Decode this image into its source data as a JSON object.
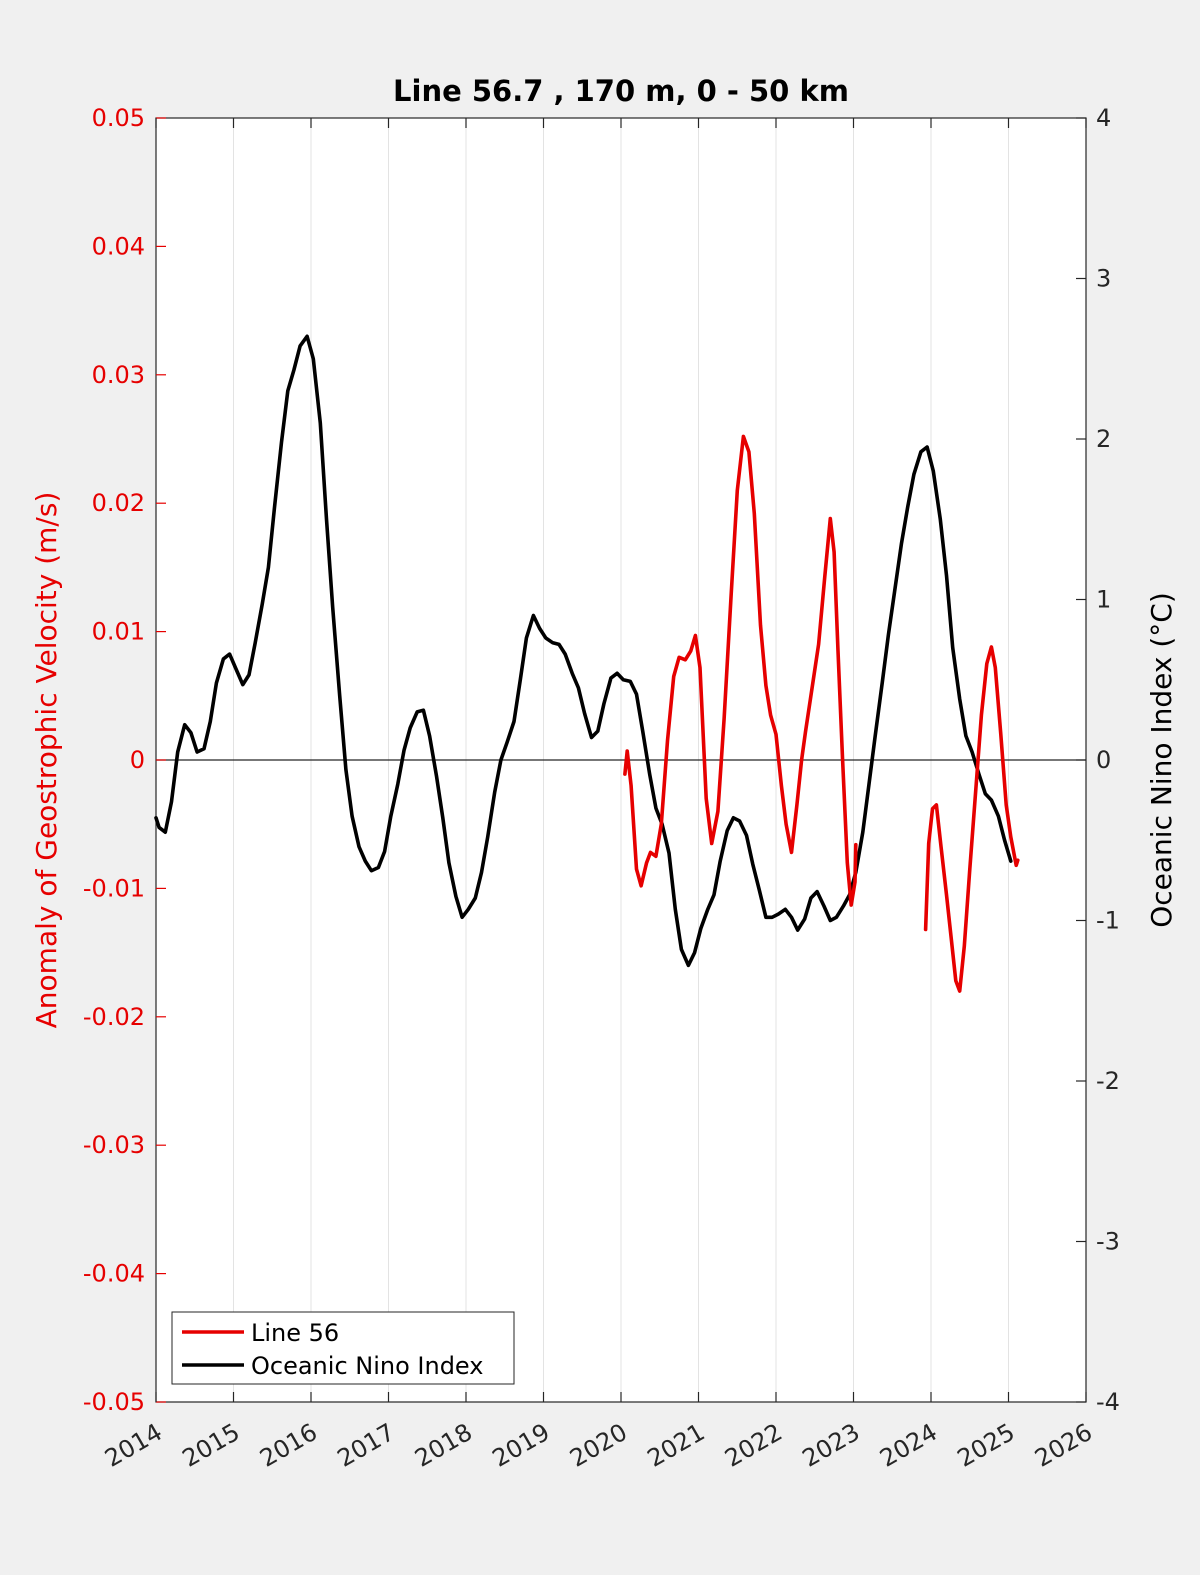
{
  "chart_data": {
    "type": "line",
    "title": "Line 56.7 , 170 m, 0 - 50 km",
    "xlabel": "",
    "ylabel_left": "Anomaly of Geostrophic Velocity (m/s)",
    "ylabel_right": "Oceanic Nino Index (°C)",
    "xlim": [
      2014,
      2026
    ],
    "ylim_left": [
      -0.05,
      0.05
    ],
    "ylim_right": [
      -4,
      4
    ],
    "x_ticks": [
      "2014",
      "2015",
      "2016",
      "2017",
      "2018",
      "2019",
      "2020",
      "2021",
      "2022",
      "2023",
      "2024",
      "2025",
      "2026"
    ],
    "y_left_ticks": [
      "0.05",
      "0.04",
      "0.03",
      "0.02",
      "0.01",
      "0",
      "-0.01",
      "-0.02",
      "-0.03",
      "-0.04",
      "-0.05"
    ],
    "y_right_ticks": [
      "4",
      "3",
      "2",
      "1",
      "0",
      "-1",
      "-2",
      "-3",
      "-4"
    ],
    "x_grid": true,
    "zero_line": true,
    "legend_position": "bottom-left",
    "series": [
      {
        "name": "Line 56",
        "axis": "left",
        "color": "#e60000",
        "segments": [
          [
            [
              2020.05,
              -0.0011
            ],
            [
              2020.08,
              0.0007
            ],
            [
              2020.13,
              -0.002
            ],
            [
              2020.2,
              -0.0085
            ],
            [
              2020.26,
              -0.0098
            ],
            [
              2020.33,
              -0.008
            ],
            [
              2020.38,
              -0.0072
            ],
            [
              2020.45,
              -0.0075
            ],
            [
              2020.52,
              -0.005
            ],
            [
              2020.6,
              0.0015
            ],
            [
              2020.68,
              0.0065
            ],
            [
              2020.75,
              0.008
            ],
            [
              2020.83,
              0.0078
            ],
            [
              2020.9,
              0.0085
            ],
            [
              2020.96,
              0.0097
            ],
            [
              2021.02,
              0.0072
            ],
            [
              2021.1,
              -0.003
            ],
            [
              2021.17,
              -0.0065
            ],
            [
              2021.25,
              -0.004
            ],
            [
              2021.33,
              0.0032
            ],
            [
              2021.42,
              0.0128
            ],
            [
              2021.5,
              0.021
            ],
            [
              2021.58,
              0.0252
            ],
            [
              2021.65,
              0.024
            ],
            [
              2021.72,
              0.0192
            ],
            [
              2021.8,
              0.0105
            ],
            [
              2021.87,
              0.0058
            ],
            [
              2021.93,
              0.0035
            ],
            [
              2022.0,
              0.002
            ],
            [
              2022.07,
              -0.002
            ],
            [
              2022.13,
              -0.005
            ],
            [
              2022.2,
              -0.0072
            ],
            [
              2022.27,
              -0.0035
            ],
            [
              2022.33,
              0.0
            ],
            [
              2022.38,
              0.0022
            ],
            [
              2022.45,
              0.005
            ],
            [
              2022.55,
              0.009
            ],
            [
              2022.63,
              0.0143
            ],
            [
              2022.7,
              0.0188
            ],
            [
              2022.75,
              0.0162
            ],
            [
              2022.8,
              0.0085
            ],
            [
              2022.86,
              0.0
            ],
            [
              2022.92,
              -0.008
            ],
            [
              2022.97,
              -0.0113
            ],
            [
              2023.02,
              -0.0095
            ],
            [
              2023.03,
              -0.0066
            ]
          ],
          [
            [
              2023.93,
              -0.0132
            ],
            [
              2023.97,
              -0.0065
            ],
            [
              2024.02,
              -0.0038
            ],
            [
              2024.07,
              -0.0035
            ],
            [
              2024.13,
              -0.0068
            ],
            [
              2024.2,
              -0.0105
            ],
            [
              2024.26,
              -0.0138
            ],
            [
              2024.32,
              -0.0172
            ],
            [
              2024.37,
              -0.018
            ],
            [
              2024.43,
              -0.0145
            ],
            [
              2024.5,
              -0.0085
            ],
            [
              2024.58,
              -0.0022
            ],
            [
              2024.65,
              0.0035
            ],
            [
              2024.72,
              0.0075
            ],
            [
              2024.78,
              0.0088
            ],
            [
              2024.83,
              0.0072
            ],
            [
              2024.9,
              0.002
            ],
            [
              2024.97,
              -0.0035
            ],
            [
              2025.03,
              -0.006
            ],
            [
              2025.1,
              -0.0082
            ],
            [
              2025.12,
              -0.0078
            ]
          ]
        ]
      },
      {
        "name": "Oceanic Nino Index",
        "axis": "right",
        "color": "#000000",
        "segments": [
          [
            [
              2014.0,
              -0.36
            ],
            [
              2014.04,
              -0.42
            ],
            [
              2014.12,
              -0.45
            ],
            [
              2014.2,
              -0.26
            ],
            [
              2014.28,
              0.05
            ],
            [
              2014.37,
              0.22
            ],
            [
              2014.45,
              0.17
            ],
            [
              2014.53,
              0.05
            ],
            [
              2014.62,
              0.07
            ],
            [
              2014.7,
              0.24
            ],
            [
              2014.78,
              0.48
            ],
            [
              2014.87,
              0.63
            ],
            [
              2014.95,
              0.66
            ],
            [
              2015.03,
              0.57
            ],
            [
              2015.12,
              0.47
            ],
            [
              2015.2,
              0.53
            ],
            [
              2015.28,
              0.73
            ],
            [
              2015.37,
              0.97
            ],
            [
              2015.45,
              1.2
            ],
            [
              2015.53,
              1.58
            ],
            [
              2015.62,
              1.98
            ],
            [
              2015.7,
              2.3
            ],
            [
              2015.78,
              2.43
            ],
            [
              2015.86,
              2.58
            ],
            [
              2015.95,
              2.64
            ],
            [
              2016.03,
              2.5
            ],
            [
              2016.12,
              2.1
            ],
            [
              2016.2,
              1.5
            ],
            [
              2016.28,
              0.95
            ],
            [
              2016.37,
              0.4
            ],
            [
              2016.45,
              -0.06
            ],
            [
              2016.53,
              -0.35
            ],
            [
              2016.62,
              -0.54
            ],
            [
              2016.7,
              -0.63
            ],
            [
              2016.78,
              -0.69
            ],
            [
              2016.87,
              -0.67
            ],
            [
              2016.95,
              -0.57
            ],
            [
              2017.03,
              -0.35
            ],
            [
              2017.12,
              -0.15
            ],
            [
              2017.2,
              0.06
            ],
            [
              2017.28,
              0.2
            ],
            [
              2017.37,
              0.3
            ],
            [
              2017.45,
              0.31
            ],
            [
              2017.53,
              0.15
            ],
            [
              2017.62,
              -0.1
            ],
            [
              2017.7,
              -0.36
            ],
            [
              2017.78,
              -0.64
            ],
            [
              2017.87,
              -0.85
            ],
            [
              2017.95,
              -0.98
            ],
            [
              2018.03,
              -0.93
            ],
            [
              2018.12,
              -0.86
            ],
            [
              2018.2,
              -0.7
            ],
            [
              2018.28,
              -0.48
            ],
            [
              2018.37,
              -0.2
            ],
            [
              2018.45,
              0.0
            ],
            [
              2018.53,
              0.11
            ],
            [
              2018.62,
              0.24
            ],
            [
              2018.7,
              0.5
            ],
            [
              2018.78,
              0.76
            ],
            [
              2018.87,
              0.9
            ],
            [
              2018.95,
              0.82
            ],
            [
              2019.03,
              0.76
            ],
            [
              2019.12,
              0.73
            ],
            [
              2019.2,
              0.72
            ],
            [
              2019.28,
              0.66
            ],
            [
              2019.37,
              0.54
            ],
            [
              2019.45,
              0.45
            ],
            [
              2019.53,
              0.29
            ],
            [
              2019.62,
              0.14
            ],
            [
              2019.7,
              0.18
            ],
            [
              2019.78,
              0.35
            ],
            [
              2019.87,
              0.51
            ],
            [
              2019.95,
              0.54
            ],
            [
              2020.03,
              0.5
            ],
            [
              2020.12,
              0.49
            ],
            [
              2020.2,
              0.41
            ],
            [
              2020.28,
              0.18
            ],
            [
              2020.37,
              -0.09
            ],
            [
              2020.45,
              -0.3
            ],
            [
              2020.53,
              -0.4
            ],
            [
              2020.62,
              -0.58
            ],
            [
              2020.7,
              -0.93
            ],
            [
              2020.78,
              -1.18
            ],
            [
              2020.87,
              -1.28
            ],
            [
              2020.95,
              -1.2
            ],
            [
              2021.03,
              -1.05
            ],
            [
              2021.12,
              -0.93
            ],
            [
              2021.2,
              -0.84
            ],
            [
              2021.28,
              -0.63
            ],
            [
              2021.37,
              -0.44
            ],
            [
              2021.45,
              -0.36
            ],
            [
              2021.53,
              -0.38
            ],
            [
              2021.62,
              -0.47
            ],
            [
              2021.7,
              -0.65
            ],
            [
              2021.78,
              -0.8
            ],
            [
              2021.87,
              -0.98
            ],
            [
              2021.95,
              -0.98
            ],
            [
              2022.03,
              -0.96
            ],
            [
              2022.12,
              -0.93
            ],
            [
              2022.2,
              -0.98
            ],
            [
              2022.28,
              -1.06
            ],
            [
              2022.37,
              -0.99
            ],
            [
              2022.45,
              -0.86
            ],
            [
              2022.53,
              -0.82
            ],
            [
              2022.62,
              -0.91
            ],
            [
              2022.7,
              -1.0
            ],
            [
              2022.78,
              -0.98
            ],
            [
              2022.87,
              -0.91
            ],
            [
              2022.95,
              -0.84
            ],
            [
              2023.03,
              -0.7
            ],
            [
              2023.12,
              -0.45
            ],
            [
              2023.2,
              -0.15
            ],
            [
              2023.28,
              0.15
            ],
            [
              2023.37,
              0.48
            ],
            [
              2023.45,
              0.78
            ],
            [
              2023.53,
              1.05
            ],
            [
              2023.62,
              1.35
            ],
            [
              2023.7,
              1.58
            ],
            [
              2023.78,
              1.78
            ],
            [
              2023.87,
              1.92
            ],
            [
              2023.95,
              1.95
            ],
            [
              2024.03,
              1.8
            ],
            [
              2024.12,
              1.5
            ],
            [
              2024.2,
              1.15
            ],
            [
              2024.28,
              0.7
            ],
            [
              2024.37,
              0.38
            ],
            [
              2024.45,
              0.15
            ],
            [
              2024.53,
              0.05
            ],
            [
              2024.62,
              -0.09
            ],
            [
              2024.7,
              -0.21
            ],
            [
              2024.78,
              -0.25
            ],
            [
              2024.87,
              -0.35
            ],
            [
              2024.95,
              -0.5
            ],
            [
              2025.03,
              -0.63
            ]
          ]
        ]
      }
    ]
  }
}
